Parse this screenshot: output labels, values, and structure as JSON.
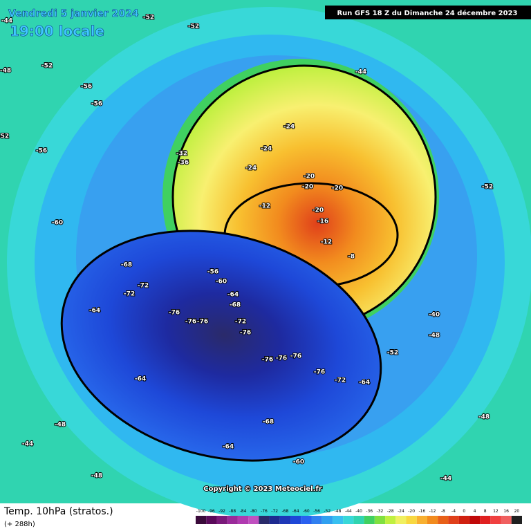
{
  "header": {
    "date": "Vendredi 5 janvier 2024",
    "time": "19:00 locale",
    "run": "Run GFS 18 Z du Dimanche 24 décembre 2023"
  },
  "copyright": "Copyright © 2023 Meteociel.fr",
  "footer": {
    "title": "Temp. 10hPa (stratos.)",
    "lead": "(+ 288h)"
  },
  "legend": [
    "-100",
    "-96",
    "-92",
    "-88",
    "-84",
    "-80",
    "-76",
    "-72",
    "-68",
    "-64",
    "-60",
    "-56",
    "-52",
    "-48",
    "-44",
    "-40",
    "-36",
    "-32",
    "-28",
    "-24",
    "-20",
    "-16",
    "-12",
    "-8",
    "-4",
    "0",
    "4",
    "8",
    "12",
    "16",
    "20"
  ],
  "contour_labels": [
    "-44",
    "-52",
    "-52",
    "-52",
    "-56",
    "-56",
    "-48",
    "-56",
    "-52",
    "-32",
    "-36",
    "-24",
    "-24",
    "-24",
    "-20",
    "-20",
    "-20",
    "-20",
    "-12",
    "-16",
    "-12",
    "-8",
    "-44",
    "-52",
    "-60",
    "-68",
    "-72",
    "-72",
    "-64",
    "-76",
    "-76",
    "-76",
    "-72",
    "-76",
    "-76",
    "-76",
    "-76",
    "-76",
    "-72",
    "-64",
    "-64",
    "-68",
    "-64",
    "-60",
    "-56",
    "-60",
    "-64",
    "-68",
    "-40",
    "-48",
    "-52",
    "-48",
    "-44",
    "-48",
    "-44",
    "-48"
  ]
}
